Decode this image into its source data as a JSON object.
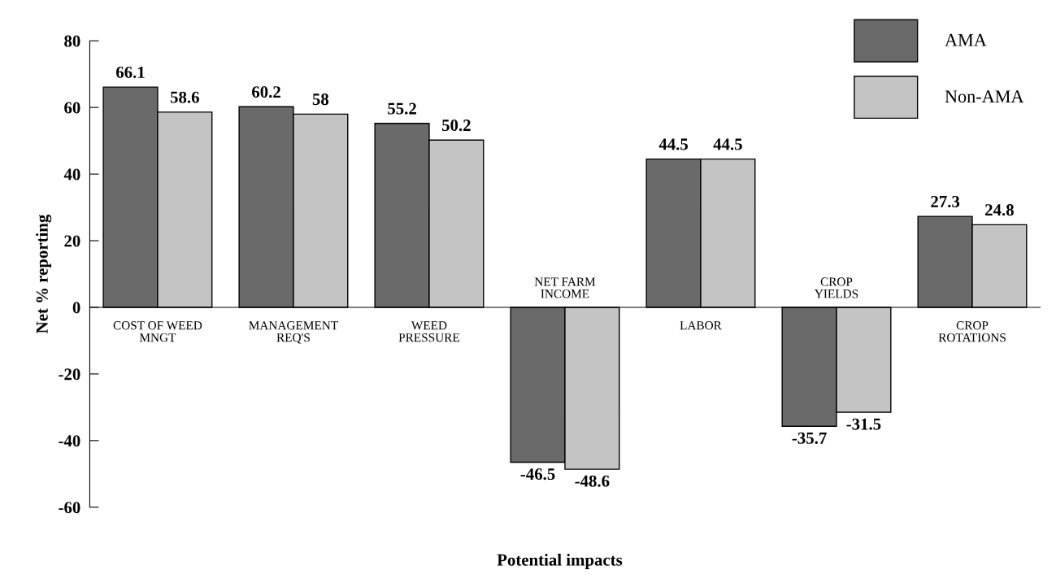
{
  "chart_data": {
    "type": "bar",
    "xlabel": "Potential impacts",
    "ylabel": "Net % reporting",
    "categories": [
      "COST OF WEED\nMNGT",
      "MANAGEMENT\nREQ'S",
      "WEED\nPRESSURE",
      "NET FARM\nINCOME",
      "LABOR",
      "CROP\nYIELDS",
      "CROP\nROTATIONS"
    ],
    "series": [
      {
        "name": "AMA",
        "color": "#6a6a6a",
        "values": [
          66.1,
          60.2,
          55.2,
          -46.5,
          44.5,
          -35.7,
          27.3
        ]
      },
      {
        "name": "Non-AMA",
        "color": "#c4c4c4",
        "values": [
          58.6,
          58,
          50.2,
          -48.6,
          44.5,
          -31.5,
          24.8
        ]
      }
    ],
    "ylim": [
      -60,
      80
    ],
    "yticks": [
      -60,
      -40,
      -20,
      0,
      20,
      40,
      60,
      80
    ],
    "data_labels": true,
    "legend": "top right",
    "grid": false
  }
}
